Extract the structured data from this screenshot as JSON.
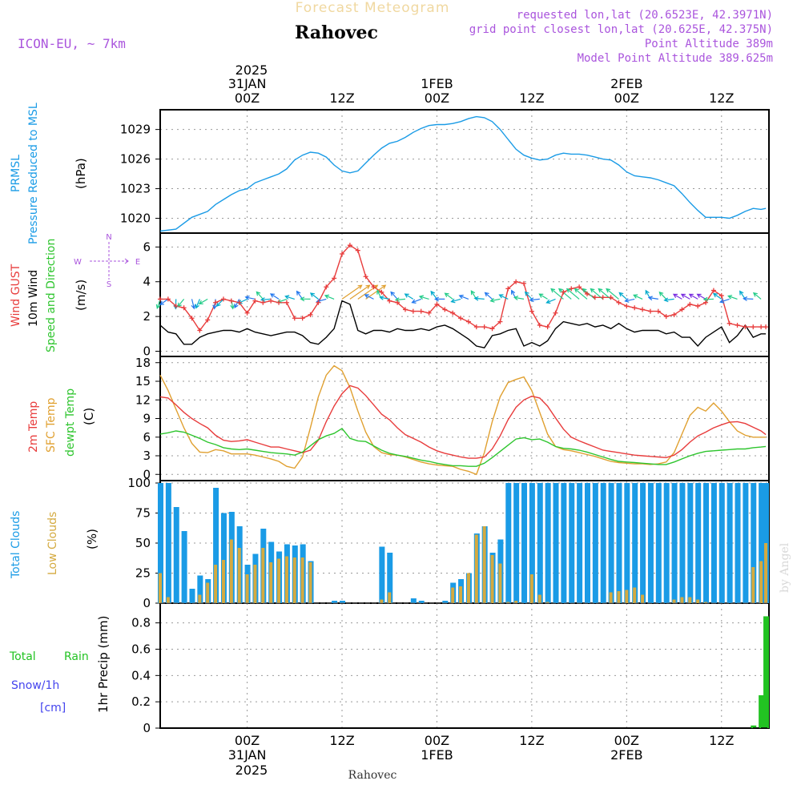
{
  "header": {
    "top_title": "Forecast Meteogram",
    "location": "Rahovec",
    "model": "ICON-EU, ~ 7km",
    "requested": "requested lon,lat (20.6523E, 42.3971N)",
    "grid_point": "grid point closest lon,lat (20.625E, 42.375N)",
    "point_altitude": "Point Altitude 389m",
    "model_altitude": "Model Point Altitude 389.625m",
    "footer_location": "Rahovec",
    "watermark": "by Angel"
  },
  "colors": {
    "pressure": "#1a9be6",
    "gust": "#e83c3c",
    "wind10m": "#000000",
    "temp2m": "#e83c3c",
    "sfc": "#e0a030",
    "dewpt": "#2ec52e",
    "total_cloud": "#1a9be6",
    "low_cloud": "#d4aa40",
    "rain": "#22c322",
    "snow": "#4444ee",
    "legend_purple": "#aa55dd",
    "grid": "#999999"
  },
  "time_axis": {
    "top_year": "2025",
    "labels": [
      "00Z",
      "12Z",
      "00Z",
      "12Z",
      "00Z",
      "12Z"
    ],
    "hours": [
      0,
      12,
      24,
      36,
      48,
      60
    ],
    "date_labels": [
      "31JAN",
      "1FEB",
      "2FEB"
    ],
    "date_hours": [
      0,
      24,
      48
    ],
    "bottom_year": "2025",
    "x_range_hours": [
      -11,
      66
    ]
  },
  "panels": {
    "pressure": {
      "label1": "PRMSL",
      "label2": "Pressure Reduced to MSL",
      "unit": "(hPa)",
      "ticks": [
        1020,
        1023,
        1026,
        1029
      ],
      "ylim": [
        1018.5,
        1031
      ]
    },
    "wind": {
      "label_gust": "Wind GUST",
      "label_wind": "10m Wind",
      "label_speed": "Speed and Direction",
      "unit": "(m/s)",
      "ticks": [
        0,
        2,
        4,
        6
      ],
      "ylim": [
        -0.3,
        6.8
      ],
      "compass_n": "N",
      "compass_s": "S",
      "compass_w": "W",
      "compass_e": "E"
    },
    "temp": {
      "label_2m": "2m Temp",
      "label_sfc": "SFC Temp",
      "label_dew": "dewpt Temp",
      "unit": "(C)",
      "ticks": [
        0,
        3,
        6,
        9,
        12,
        15,
        18
      ],
      "ylim": [
        -1,
        19
      ]
    },
    "clouds": {
      "label_total": "Total Clouds",
      "label_low": "Low Clouds",
      "unit": "(%)",
      "ticks": [
        0,
        25,
        50,
        75,
        100
      ],
      "ylim": [
        0,
        102
      ]
    },
    "precip": {
      "label_rain_a": "Total",
      "label_rain_b": "Rain",
      "label_snow": "Snow/1h",
      "label_snow_unit": "[cm]",
      "label_axis": "1hr Precip (mm)",
      "ticks": [
        "0",
        "0.2",
        "0.4",
        "0.6",
        "0.8"
      ],
      "tick_values": [
        0,
        0.2,
        0.4,
        0.6,
        0.8
      ],
      "ylim": [
        0,
        0.95
      ]
    }
  },
  "chart_data": [
    {
      "type": "line",
      "name": "PRMSL",
      "ylabel": "(hPa)",
      "x": [
        -11,
        -9,
        -7,
        -5,
        -4,
        -3,
        -2,
        -1,
        0,
        1,
        2,
        3,
        4,
        5,
        6,
        7,
        8,
        9,
        10,
        11,
        12,
        13,
        14,
        15,
        16,
        17,
        18,
        19,
        20,
        21,
        22,
        23,
        24,
        25,
        26,
        27,
        28,
        29,
        30,
        31,
        32,
        33,
        34,
        35,
        36,
        37,
        38,
        39,
        40,
        41,
        42,
        43,
        44,
        45,
        46,
        47,
        48,
        49,
        50,
        51,
        52,
        53,
        54,
        55,
        56,
        57,
        58,
        59,
        60,
        61,
        62,
        63,
        64,
        65,
        65.6
      ],
      "y": [
        1018.7,
        1018.9,
        1020.1,
        1020.7,
        1021.4,
        1021.9,
        1022.4,
        1022.8,
        1023.0,
        1023.6,
        1023.9,
        1024.2,
        1024.5,
        1025.0,
        1025.9,
        1026.4,
        1026.7,
        1026.6,
        1026.2,
        1025.4,
        1024.8,
        1024.6,
        1024.8,
        1025.6,
        1026.4,
        1027.1,
        1027.6,
        1027.8,
        1028.2,
        1028.7,
        1029.1,
        1029.4,
        1029.5,
        1029.5,
        1029.6,
        1029.8,
        1030.1,
        1030.3,
        1030.2,
        1029.8,
        1029.0,
        1028.0,
        1027.0,
        1026.4,
        1026.1,
        1025.9,
        1026.0,
        1026.4,
        1026.6,
        1026.5,
        1026.5,
        1026.4,
        1026.2,
        1026.0,
        1025.9,
        1025.4,
        1024.7,
        1024.3,
        1024.2,
        1024.1,
        1023.9,
        1023.6,
        1023.3,
        1022.5,
        1021.6,
        1020.8,
        1020.1,
        1020.1,
        1020.1,
        1020.0,
        1020.3,
        1020.7,
        1021.0,
        1020.9,
        1021.0
      ]
    },
    {
      "type": "line",
      "name": "Wind GUST",
      "ylabel": "(m/s)",
      "x": [
        -11,
        -10,
        -9,
        -8,
        -7,
        -6,
        -5,
        -4,
        -3,
        -2,
        -1,
        0,
        1,
        2,
        3,
        4,
        5,
        6,
        7,
        8,
        9,
        10,
        11,
        12,
        13,
        14,
        15,
        16,
        17,
        18,
        19,
        20,
        21,
        22,
        23,
        24,
        25,
        26,
        27,
        28,
        29,
        30,
        31,
        32,
        33,
        34,
        35,
        36,
        37,
        38,
        39,
        40,
        41,
        42,
        43,
        44,
        45,
        46,
        47,
        48,
        49,
        50,
        51,
        52,
        53,
        54,
        55,
        56,
        57,
        58,
        59,
        60,
        61,
        62,
        63,
        64,
        65,
        65.6
      ],
      "y": [
        3.0,
        3.0,
        2.6,
        2.5,
        1.9,
        1.2,
        1.8,
        2.8,
        3.0,
        2.9,
        2.8,
        2.2,
        2.9,
        2.8,
        2.9,
        2.8,
        2.8,
        1.9,
        1.9,
        2.1,
        2.8,
        3.7,
        4.2,
        5.6,
        6.1,
        5.8,
        4.3,
        3.7,
        3.4,
        2.9,
        2.8,
        2.4,
        2.3,
        2.3,
        2.2,
        2.7,
        2.4,
        2.2,
        1.9,
        1.7,
        1.4,
        1.4,
        1.3,
        1.7,
        3.6,
        4.0,
        3.9,
        2.3,
        1.5,
        1.4,
        2.2,
        3.4,
        3.6,
        3.7,
        3.3,
        3.1,
        3.1,
        3.1,
        2.8,
        2.6,
        2.5,
        2.4,
        2.3,
        2.3,
        2.0,
        2.1,
        2.4,
        2.7,
        2.6,
        2.8,
        3.5,
        3.2,
        1.6,
        1.5,
        1.4,
        1.4,
        1.4,
        1.4
      ]
    },
    {
      "type": "line",
      "name": "10m Wind",
      "ylabel": "(m/s)",
      "x": [
        -11,
        -10,
        -9,
        -8,
        -7,
        -6,
        -5,
        -4,
        -3,
        -2,
        -1,
        0,
        1,
        2,
        3,
        4,
        5,
        6,
        7,
        8,
        9,
        10,
        11,
        12,
        13,
        14,
        15,
        16,
        17,
        18,
        19,
        20,
        21,
        22,
        23,
        24,
        25,
        26,
        27,
        28,
        29,
        30,
        31,
        32,
        33,
        34,
        35,
        36,
        37,
        38,
        39,
        40,
        41,
        42,
        43,
        44,
        45,
        46,
        47,
        48,
        49,
        50,
        51,
        52,
        53,
        54,
        55,
        56,
        57,
        58,
        59,
        60,
        61,
        62,
        63,
        64,
        65,
        65.6
      ],
      "y": [
        1.5,
        1.1,
        1.0,
        0.4,
        0.4,
        0.8,
        1.0,
        1.1,
        1.2,
        1.2,
        1.1,
        1.3,
        1.1,
        1.0,
        0.9,
        1.0,
        1.1,
        1.1,
        0.9,
        0.5,
        0.4,
        0.8,
        1.3,
        2.9,
        2.7,
        1.2,
        1.0,
        1.2,
        1.2,
        1.1,
        1.3,
        1.2,
        1.2,
        1.3,
        1.2,
        1.4,
        1.5,
        1.3,
        1.0,
        0.7,
        0.3,
        0.2,
        0.9,
        1.0,
        1.2,
        1.3,
        0.3,
        0.5,
        0.3,
        0.6,
        1.3,
        1.7,
        1.6,
        1.5,
        1.6,
        1.4,
        1.5,
        1.3,
        1.6,
        1.3,
        1.1,
        1.2,
        1.2,
        1.2,
        1.0,
        1.1,
        0.8,
        0.8,
        0.3,
        0.8,
        1.1,
        1.4,
        0.5,
        0.9,
        1.5,
        0.8,
        1.0,
        1.0
      ]
    },
    {
      "type": "line",
      "name": "2m Temp",
      "ylabel": "(C)",
      "x": [
        -11,
        -10,
        -9,
        -8,
        -7,
        -6,
        -5,
        -4,
        -3,
        -2,
        -1,
        0,
        1,
        2,
        3,
        4,
        5,
        6,
        7,
        8,
        9,
        10,
        11,
        12,
        13,
        14,
        15,
        16,
        17,
        18,
        19,
        20,
        21,
        22,
        23,
        24,
        25,
        26,
        27,
        28,
        29,
        30,
        31,
        32,
        33,
        34,
        35,
        36,
        37,
        38,
        39,
        40,
        41,
        42,
        43,
        44,
        45,
        46,
        47,
        48,
        49,
        50,
        51,
        52,
        53,
        54,
        55,
        56,
        57,
        58,
        59,
        60,
        61,
        62,
        63,
        64,
        65,
        65.6
      ],
      "y": [
        12.5,
        12.3,
        11.2,
        10.0,
        9.0,
        8.2,
        7.5,
        6.3,
        5.5,
        5.3,
        5.4,
        5.6,
        5.2,
        4.8,
        4.4,
        4.4,
        4.1,
        3.8,
        3.5,
        3.9,
        5.5,
        8.5,
        11.0,
        13.0,
        14.3,
        13.9,
        12.7,
        11.2,
        9.7,
        8.8,
        7.5,
        6.4,
        5.8,
        5.2,
        4.4,
        3.8,
        3.4,
        3.1,
        2.8,
        2.6,
        2.6,
        2.8,
        4.1,
        6.2,
        8.8,
        10.8,
        12.0,
        12.6,
        12.3,
        11.0,
        9.1,
        7.3,
        6.0,
        5.4,
        4.9,
        4.4,
        3.9,
        3.7,
        3.5,
        3.3,
        3.1,
        3.0,
        2.9,
        2.8,
        2.7,
        3.1,
        4.0,
        5.2,
        6.2,
        6.8,
        7.5,
        8.0,
        8.4,
        8.5,
        8.2,
        7.6,
        7.0,
        6.4
      ]
    },
    {
      "type": "line",
      "name": "SFC Temp",
      "ylabel": "(C)",
      "x": [
        -11,
        -10,
        -9,
        -8,
        -7,
        -6,
        -5,
        -4,
        -3,
        -2,
        -1,
        0,
        1,
        2,
        3,
        4,
        5,
        6,
        7,
        8,
        9,
        10,
        11,
        12,
        13,
        14,
        15,
        16,
        17,
        18,
        19,
        20,
        21,
        22,
        23,
        24,
        25,
        26,
        27,
        28,
        29,
        30,
        31,
        32,
        33,
        34,
        35,
        36,
        37,
        38,
        39,
        40,
        41,
        42,
        43,
        44,
        45,
        46,
        47,
        48,
        49,
        50,
        51,
        52,
        53,
        54,
        55,
        56,
        57,
        58,
        59,
        60,
        61,
        62,
        63,
        64,
        65,
        65.6
      ],
      "y": [
        16.0,
        13.5,
        10.5,
        7.5,
        5.0,
        3.6,
        3.5,
        4.0,
        3.8,
        3.3,
        3.3,
        3.3,
        3.1,
        2.8,
        2.5,
        2.1,
        1.3,
        1.0,
        2.8,
        7.5,
        12.5,
        16.0,
        17.5,
        16.7,
        14.0,
        10.2,
        6.8,
        4.5,
        3.5,
        3.2,
        3.1,
        2.8,
        2.4,
        2.0,
        1.7,
        1.5,
        1.4,
        1.3,
        0.8,
        0.5,
        0.0,
        3.5,
        8.5,
        12.5,
        14.8,
        15.3,
        15.7,
        13.5,
        10.0,
        6.5,
        4.5,
        4.0,
        3.8,
        3.5,
        3.2,
        2.9,
        2.5,
        2.1,
        1.9,
        1.8,
        1.7,
        1.7,
        1.6,
        1.7,
        2.0,
        3.5,
        6.5,
        9.5,
        10.8,
        10.2,
        11.5,
        10.2,
        8.5,
        7.0,
        6.3,
        6.0,
        6.0,
        6.0
      ]
    },
    {
      "type": "line",
      "name": "dewpt Temp",
      "ylabel": "(C)",
      "x": [
        -11,
        -10,
        -9,
        -8,
        -7,
        -6,
        -5,
        -4,
        -3,
        -2,
        -1,
        0,
        1,
        2,
        3,
        4,
        5,
        6,
        7,
        8,
        9,
        10,
        11,
        12,
        13,
        14,
        15,
        16,
        17,
        18,
        19,
        20,
        21,
        22,
        23,
        24,
        25,
        26,
        27,
        28,
        29,
        30,
        31,
        32,
        33,
        34,
        35,
        36,
        37,
        38,
        39,
        40,
        41,
        42,
        43,
        44,
        45,
        46,
        47,
        48,
        49,
        50,
        51,
        52,
        53,
        54,
        55,
        56,
        57,
        58,
        59,
        60,
        61,
        62,
        63,
        64,
        65,
        65.6
      ],
      "y": [
        6.5,
        6.7,
        7.0,
        6.8,
        6.3,
        5.8,
        5.2,
        4.8,
        4.3,
        4.1,
        4.0,
        4.1,
        3.9,
        3.7,
        3.5,
        3.4,
        3.3,
        3.1,
        3.6,
        4.6,
        5.6,
        6.2,
        6.6,
        7.4,
        5.8,
        5.4,
        5.3,
        4.6,
        3.9,
        3.4,
        3.1,
        2.9,
        2.6,
        2.3,
        2.1,
        1.8,
        1.6,
        1.4,
        1.4,
        1.3,
        1.3,
        1.8,
        2.7,
        3.7,
        4.7,
        5.7,
        5.9,
        5.6,
        5.7,
        5.2,
        4.5,
        4.2,
        4.1,
        3.9,
        3.6,
        3.2,
        2.8,
        2.4,
        2.1,
        2.0,
        1.9,
        1.8,
        1.7,
        1.6,
        1.6,
        2.0,
        2.5,
        3.0,
        3.4,
        3.7,
        3.8,
        3.9,
        4.0,
        4.1,
        4.1,
        4.3,
        4.4,
        4.5
      ]
    },
    {
      "type": "bar",
      "name": "Total Clouds",
      "ylabel": "(%)",
      "x": [
        -11,
        -10,
        -9,
        -8,
        -7,
        -6,
        -5,
        -4,
        -3,
        -2,
        -1,
        0,
        1,
        2,
        3,
        4,
        5,
        6,
        7,
        8,
        9,
        10,
        11,
        12,
        13,
        14,
        15,
        16,
        17,
        18,
        19,
        20,
        21,
        22,
        23,
        24,
        25,
        26,
        27,
        28,
        29,
        30,
        31,
        32,
        33,
        34,
        35,
        36,
        37,
        38,
        39,
        40,
        41,
        42,
        43,
        44,
        45,
        46,
        47,
        48,
        49,
        50,
        51,
        52,
        53,
        54,
        55,
        56,
        57,
        58,
        59,
        60,
        61,
        62,
        63,
        64,
        65,
        65.6
      ],
      "y": [
        100,
        100,
        80,
        60,
        12,
        23,
        20,
        96,
        75,
        76,
        64,
        32,
        41,
        62,
        51,
        43,
        49,
        48,
        49,
        35,
        0,
        0,
        2,
        2,
        0,
        0,
        0,
        0,
        47,
        42,
        0,
        0,
        4,
        2,
        0,
        0,
        2,
        17,
        20,
        25,
        58,
        64,
        42,
        53,
        100,
        100,
        100,
        100,
        100,
        100,
        100,
        100,
        100,
        100,
        100,
        100,
        100,
        100,
        100,
        100,
        100,
        100,
        100,
        100,
        100,
        100,
        100,
        100,
        100,
        100,
        100,
        100,
        100,
        100,
        100,
        100,
        100,
        100
      ]
    },
    {
      "type": "bar",
      "name": "Low Clouds",
      "ylabel": "(%)",
      "x": [
        -11,
        -10,
        -9,
        -8,
        -7,
        -6,
        -5,
        -4,
        -3,
        -2,
        -1,
        0,
        1,
        2,
        3,
        4,
        5,
        6,
        7,
        8,
        9,
        10,
        11,
        12,
        13,
        14,
        15,
        16,
        17,
        18,
        19,
        20,
        21,
        22,
        23,
        24,
        25,
        26,
        27,
        28,
        29,
        30,
        31,
        32,
        33,
        34,
        35,
        36,
        37,
        38,
        39,
        40,
        41,
        42,
        43,
        44,
        45,
        46,
        47,
        48,
        49,
        50,
        51,
        52,
        53,
        54,
        55,
        56,
        57,
        58,
        59,
        60,
        61,
        62,
        63,
        64,
        65,
        65.6
      ],
      "y": [
        25,
        5,
        0,
        0,
        0,
        7,
        17,
        32,
        36,
        53,
        46,
        24,
        32,
        46,
        34,
        37,
        39,
        38,
        38,
        34,
        0,
        0,
        0,
        0,
        0,
        0,
        0,
        0,
        3,
        9,
        0,
        0,
        0,
        0,
        0,
        0,
        0,
        13,
        14,
        25,
        57,
        64,
        40,
        33,
        1,
        2,
        0,
        24,
        7,
        1,
        0,
        0,
        0,
        0,
        0,
        0,
        0,
        9,
        10,
        11,
        13,
        7,
        0,
        0,
        0,
        3,
        5,
        5,
        3,
        1,
        0,
        0,
        0,
        0,
        0,
        30,
        35,
        50
      ]
    },
    {
      "type": "bar",
      "name": "1hr Precip",
      "ylabel": "1hr Precip (mm)",
      "x": [
        64,
        65,
        65.6
      ],
      "y": [
        0.02,
        0.25,
        0.85
      ]
    }
  ]
}
